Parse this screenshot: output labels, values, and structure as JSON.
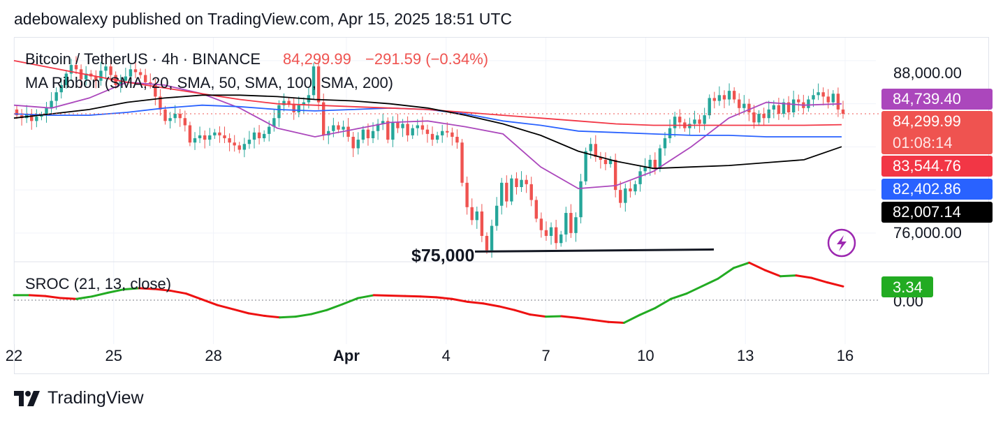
{
  "header": {
    "text": "adebowalexy published on TradingView.com, Apr 15, 2025 18:51 UTC"
  },
  "footer": {
    "brand": "TradingView",
    "logo_icon": "tradingview-logo-icon"
  },
  "colors": {
    "up": "#26a69a",
    "down": "#ef5350",
    "sma20": "#ab47bc",
    "sma50": "#2962ff",
    "sma100": "#f23645",
    "sma200": "#000000",
    "sroc_up": "#22ab22",
    "sroc_down": "#ee1111",
    "last_price_label": "#ef5350"
  },
  "legend": {
    "symbol": "Bitcoin / TetherUS · 4h · BINANCE",
    "price": "84,299.99",
    "change": "−291.59 (−0.34%)",
    "ma_ribbon": "MA Ribbon (SMA, 20, SMA, 50, SMA, 100, SMA, 200)",
    "sroc": "SROC (21, 13, close)"
  },
  "annotation": {
    "support_label": "$75,000",
    "lightning_icon": "lightning-icon"
  },
  "chart_data": [
    {
      "type": "candlestick",
      "title": "Bitcoin / TetherUS · 4h · BINANCE",
      "timeframe": "4h",
      "x_ticks": [
        "22",
        "25",
        "28",
        "Apr",
        "4",
        "7",
        "10",
        "13",
        "16"
      ],
      "y_ticks": [
        "88,000.00",
        "76,000.00"
      ],
      "ylim": [
        74000,
        89600
      ],
      "x_start": "2025-03-22",
      "candles": [
        [
          84600,
          84200
        ],
        [
          84200,
          84000
        ],
        [
          84000,
          84300
        ],
        [
          84300,
          83800
        ],
        [
          83800,
          84100
        ],
        [
          84100,
          84200
        ],
        [
          84200,
          84700
        ],
        [
          84700,
          85200
        ],
        [
          85200,
          85800
        ],
        [
          85800,
          86300
        ],
        [
          86300,
          87100
        ],
        [
          87100,
          87700
        ],
        [
          87700,
          87400
        ],
        [
          87400,
          86700
        ],
        [
          86700,
          87100
        ],
        [
          87100,
          86900
        ],
        [
          86900,
          86600
        ],
        [
          86600,
          87300
        ],
        [
          87300,
          87600
        ],
        [
          87600,
          87000
        ],
        [
          87000,
          86300
        ],
        [
          86300,
          86600
        ],
        [
          86600,
          86900
        ],
        [
          86900,
          87400
        ],
        [
          87400,
          87200
        ],
        [
          87200,
          87000
        ],
        [
          87000,
          86500
        ],
        [
          86500,
          86400
        ],
        [
          86400,
          85500
        ],
        [
          85500,
          84600
        ],
        [
          84600,
          83800
        ],
        [
          83800,
          84000
        ],
        [
          84000,
          84300
        ],
        [
          84300,
          84000
        ],
        [
          84000,
          83500
        ],
        [
          83500,
          82300
        ],
        [
          82300,
          82600
        ],
        [
          82600,
          82800
        ],
        [
          82800,
          82500
        ],
        [
          82500,
          82800
        ],
        [
          82800,
          83000
        ],
        [
          83000,
          82800
        ],
        [
          82800,
          82600
        ],
        [
          82600,
          82300
        ],
        [
          82300,
          82100
        ],
        [
          82100,
          81800
        ],
        [
          81800,
          82200
        ],
        [
          82200,
          82500
        ],
        [
          82500,
          83000
        ],
        [
          83000,
          82600
        ],
        [
          82600,
          82900
        ],
        [
          82900,
          83400
        ],
        [
          83400,
          84000
        ],
        [
          84000,
          84900
        ],
        [
          84900,
          85200
        ],
        [
          85200,
          85000
        ],
        [
          85000,
          84400
        ],
        [
          84400,
          84900
        ],
        [
          84900,
          85100
        ],
        [
          85100,
          85600
        ],
        [
          85600,
          87600
        ],
        [
          87600,
          85100
        ],
        [
          85100,
          82800
        ],
        [
          82800,
          83100
        ],
        [
          83100,
          83500
        ],
        [
          83500,
          83200
        ],
        [
          83200,
          83400
        ],
        [
          83400,
          82700
        ],
        [
          82700,
          81900
        ],
        [
          81900,
          82500
        ],
        [
          82500,
          83200
        ],
        [
          83200,
          82600
        ],
        [
          82600,
          83100
        ],
        [
          83100,
          83600
        ],
        [
          83600,
          83800
        ],
        [
          83800,
          82500
        ],
        [
          82500,
          83700
        ],
        [
          83700,
          83300
        ],
        [
          83300,
          83600
        ],
        [
          83600,
          82800
        ],
        [
          82800,
          83300
        ],
        [
          83300,
          83500
        ],
        [
          83500,
          83200
        ],
        [
          83200,
          82900
        ],
        [
          82900,
          82500
        ],
        [
          82500,
          82800
        ],
        [
          82800,
          83100
        ],
        [
          83100,
          83000
        ],
        [
          83000,
          82700
        ],
        [
          82700,
          82300
        ],
        [
          82300,
          79500
        ],
        [
          79500,
          77800
        ],
        [
          77800,
          76900
        ],
        [
          76900,
          77500
        ],
        [
          77500,
          75800
        ],
        [
          75800,
          74800
        ],
        [
          74800,
          76500
        ],
        [
          76500,
          77900
        ],
        [
          77900,
          79500
        ],
        [
          79500,
          78200
        ],
        [
          78200,
          79800
        ],
        [
          79800,
          79200
        ],
        [
          79200,
          79700
        ],
        [
          79700,
          79400
        ],
        [
          79400,
          78300
        ],
        [
          78300,
          77000
        ],
        [
          77000,
          76200
        ],
        [
          76200,
          75800
        ],
        [
          75800,
          76400
        ],
        [
          76400,
          75300
        ],
        [
          75300,
          75900
        ],
        [
          75900,
          77400
        ],
        [
          77400,
          76000
        ],
        [
          76000,
          77100
        ],
        [
          77100,
          79600
        ],
        [
          79600,
          81700
        ],
        [
          81700,
          82200
        ],
        [
          82200,
          81300
        ],
        [
          81300,
          81100
        ],
        [
          81100,
          80800
        ],
        [
          80800,
          81100
        ],
        [
          81100,
          79000
        ],
        [
          79000,
          78100
        ],
        [
          78100,
          79100
        ],
        [
          79100,
          78900
        ],
        [
          78900,
          79400
        ],
        [
          79400,
          80300
        ],
        [
          80300,
          80600
        ],
        [
          80600,
          81100
        ],
        [
          81100,
          80500
        ],
        [
          80500,
          81900
        ],
        [
          81900,
          82600
        ],
        [
          82600,
          83300
        ],
        [
          83300,
          84100
        ],
        [
          84100,
          83700
        ],
        [
          83700,
          83300
        ],
        [
          83300,
          83600
        ],
        [
          83600,
          83900
        ],
        [
          83900,
          83600
        ],
        [
          83600,
          84200
        ],
        [
          84200,
          85400
        ],
        [
          85400,
          85200
        ],
        [
          85200,
          85600
        ],
        [
          85600,
          85300
        ],
        [
          85300,
          85900
        ],
        [
          85900,
          85300
        ],
        [
          85300,
          84700
        ],
        [
          84700,
          85000
        ],
        [
          85000,
          84400
        ],
        [
          84400,
          83700
        ],
        [
          83700,
          84300
        ],
        [
          84300,
          84000
        ],
        [
          84000,
          84600
        ],
        [
          84600,
          84900
        ],
        [
          84900,
          84300
        ],
        [
          84300,
          85100
        ],
        [
          85100,
          84400
        ],
        [
          84400,
          85300
        ],
        [
          85300,
          85100
        ],
        [
          85100,
          84700
        ],
        [
          84700,
          85300
        ],
        [
          85300,
          85600
        ],
        [
          85600,
          85800
        ],
        [
          85800,
          85500
        ],
        [
          85500,
          85100
        ],
        [
          85100,
          85700
        ],
        [
          85700,
          84600
        ],
        [
          84600,
          84299.99
        ]
      ],
      "series": [
        {
          "name": "SMA 20",
          "values": [
            84900,
            84700,
            85400,
            86500,
            86300,
            85700,
            84700,
            83300,
            82700,
            83200,
            83700,
            83800,
            83400,
            82900,
            80600,
            79100,
            79300,
            80300,
            82000,
            84000,
            85100,
            84900,
            85000
          ]
        },
        {
          "name": "SMA 50",
          "values": [
            84300,
            84200,
            84200,
            84400,
            84700,
            84900,
            84800,
            84600,
            84500,
            84600,
            84700,
            84600,
            84300,
            83800,
            83500,
            83100,
            83000,
            82900,
            82800,
            82800,
            82700,
            82700,
            82700
          ]
        },
        {
          "name": "SMA 100",
          "values": [
            88000,
            87500,
            87000,
            86500,
            86100,
            85700,
            85300,
            85000,
            84900,
            84800,
            84700,
            84600,
            84400,
            84200,
            84000,
            83800,
            83600,
            83500,
            83500,
            83500,
            83500,
            83500,
            83545
          ]
        },
        {
          "name": "SMA 200",
          "values": [
            84000,
            84300,
            84600,
            85100,
            85400,
            85600,
            85600,
            85500,
            85300,
            85200,
            85000,
            84700,
            84200,
            83600,
            82800,
            81700,
            81000,
            80500,
            80600,
            80700,
            80900,
            81100,
            82007
          ]
        }
      ],
      "price_labels": [
        {
          "text": "84,739.40",
          "value": 84739.4
        },
        {
          "text": "84,299.99",
          "value": 84299.99
        },
        {
          "text": "01:08:14"
        },
        {
          "text": "83,544.76",
          "value": 83544.76
        },
        {
          "text": "82,402.86",
          "value": 82402.86
        },
        {
          "text": "82,007.14",
          "value": 82007.14
        }
      ],
      "support_line": {
        "label": "$75,000",
        "x_start": "2025-04-04",
        "x_end": "2025-04-12",
        "y": 75000
      }
    },
    {
      "type": "line",
      "title": "SROC (21, 13, close)",
      "y_ticks": [
        "0.00"
      ],
      "zero_line": 0,
      "last_value": "3.34",
      "values": [
        1.2,
        1.2,
        1.0,
        0.5,
        0.3,
        0.9,
        1.8,
        2.6,
        2.9,
        2.7,
        2.3,
        1.6,
        0.2,
        -1.2,
        -2.2,
        -3.2,
        -3.8,
        -4.2,
        -4.0,
        -3.4,
        -2.4,
        -1.0,
        0.5,
        1.2,
        1.1,
        1.0,
        0.9,
        0.7,
        0.3,
        -0.4,
        -0.8,
        -1.5,
        -2.4,
        -3.5,
        -4.0,
        -3.9,
        -4.3,
        -4.8,
        -5.3,
        -5.5,
        -3.6,
        -1.9,
        0.3,
        1.6,
        3.4,
        5.2,
        7.8,
        9.1,
        7.3,
        5.8,
        6.0,
        5.4,
        4.3,
        3.34
      ]
    }
  ]
}
